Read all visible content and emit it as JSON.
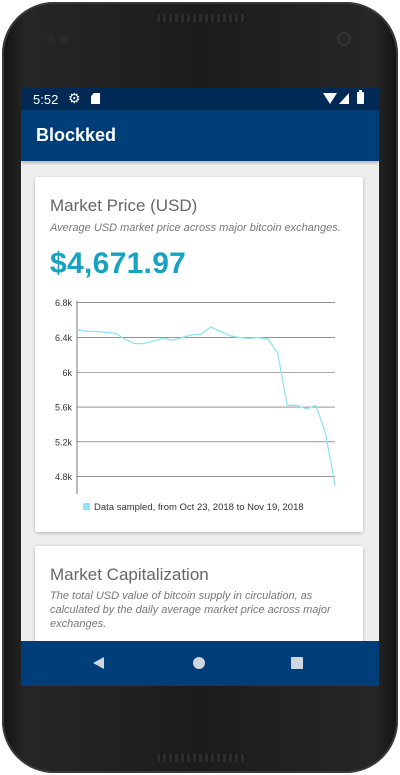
{
  "status_bar": {
    "time": "5:52",
    "icons": [
      "gear-icon",
      "sd-card-icon",
      "wifi-icon",
      "signal-icon",
      "battery-icon"
    ]
  },
  "app_bar": {
    "title": "Blockked",
    "color": "#003e7a"
  },
  "cards": [
    {
      "title": "Market Price (USD)",
      "description": "Average USD market price across major bitcoin exchanges.",
      "value": "$4,671.97",
      "value_color": "#16a2c2"
    },
    {
      "title": "Market Capitalization",
      "description": "The total USD value of bitcoin supply in circulation, as calculated by the daily average market price across major exchanges."
    }
  ],
  "chart_data": {
    "type": "line",
    "ylim": [
      4.6,
      6.9
    ],
    "yticks": [
      4.8,
      5.2,
      5.6,
      6.0,
      6.4,
      6.8
    ],
    "ytick_labels": [
      "4.8k",
      "5.2k",
      "5.6k",
      "6k",
      "6.4k",
      "6.8k"
    ],
    "grid": true,
    "legend": "bottom",
    "series": [
      {
        "name": "Data sampled, from Oct 23, 2018 to Nov 19, 2018",
        "color": "#8ee4f7",
        "x": [
          "2018-10-23",
          "2018-10-24",
          "2018-10-25",
          "2018-10-26",
          "2018-10-27",
          "2018-10-28",
          "2018-10-29",
          "2018-10-30",
          "2018-10-31",
          "2018-11-01",
          "2018-11-02",
          "2018-11-03",
          "2018-11-04",
          "2018-11-05",
          "2018-11-06",
          "2018-11-07",
          "2018-11-08",
          "2018-11-09",
          "2018-11-10",
          "2018-11-11",
          "2018-11-12",
          "2018-11-13",
          "2018-11-14",
          "2018-11-15",
          "2018-11-16",
          "2018-11-17",
          "2018-11-18",
          "2018-11-19"
        ],
        "values": [
          6.49,
          6.47,
          6.47,
          6.46,
          6.45,
          6.38,
          6.33,
          6.33,
          6.36,
          6.39,
          6.37,
          6.4,
          6.43,
          6.44,
          6.52,
          6.47,
          6.42,
          6.4,
          6.39,
          6.4,
          6.38,
          6.22,
          5.62,
          5.62,
          5.58,
          5.62,
          5.3,
          4.7
        ]
      }
    ]
  },
  "nav_bar": {
    "buttons": [
      "back",
      "home",
      "recent"
    ]
  }
}
